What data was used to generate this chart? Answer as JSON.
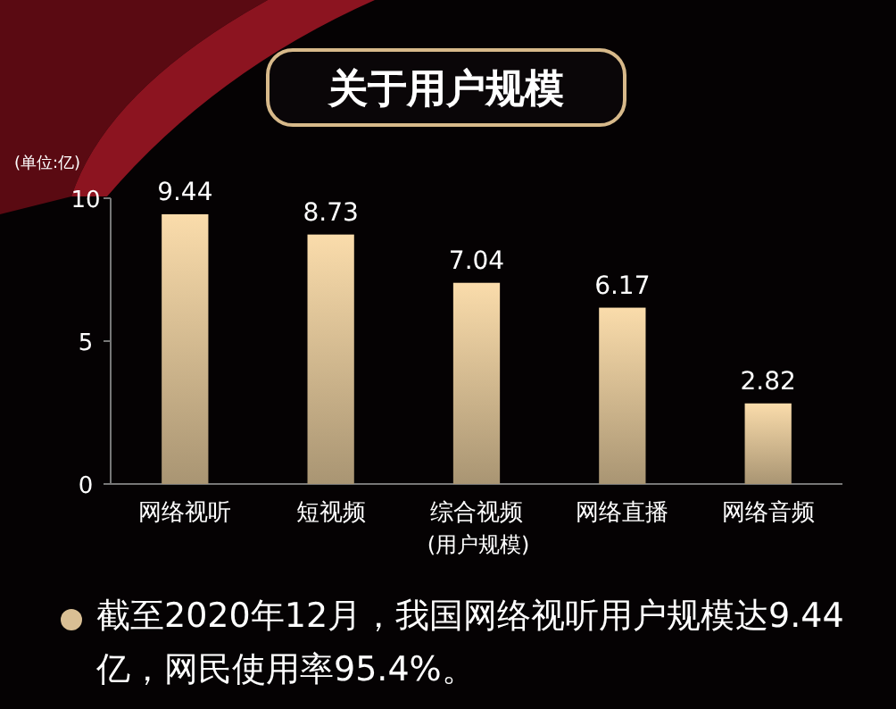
{
  "chart_data": {
    "type": "bar",
    "title": "关于用户规模",
    "ylabel": "(单位:亿)",
    "xlabel": "(用户规模)",
    "categories": [
      "网络视听",
      "短视频",
      "综合视频",
      "网络直播",
      "网络音频"
    ],
    "values": [
      9.44,
      8.73,
      7.04,
      6.17,
      2.82
    ],
    "color": "#d9bf94",
    "ylim": [
      0,
      10
    ],
    "yticks": [
      0,
      5,
      10
    ],
    "grid": false,
    "data_labels": true,
    "annotations": [
      "截至2020年12月，我国网络视听用户规模达9.44亿，网民使用率95.4%。"
    ]
  }
}
